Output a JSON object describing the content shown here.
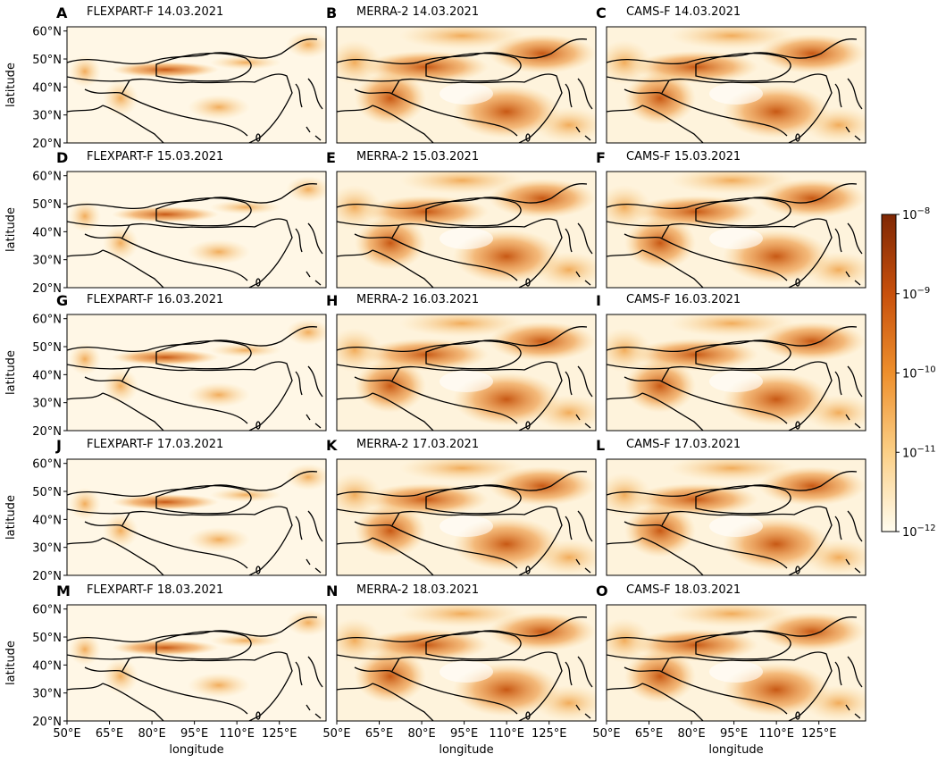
{
  "panels": [
    {
      "letter": "A",
      "title": "FLEXPART-F 14.03.2021"
    },
    {
      "letter": "B",
      "title": "MERRA-2 14.03.2021"
    },
    {
      "letter": "C",
      "title": "CAMS-F 14.03.2021"
    },
    {
      "letter": "D",
      "title": "FLEXPART-F 15.03.2021"
    },
    {
      "letter": "E",
      "title": "MERRA-2 15.03.2021"
    },
    {
      "letter": "F",
      "title": "CAMS-F 15.03.2021"
    },
    {
      "letter": "G",
      "title": "FLEXPART-F 16.03.2021"
    },
    {
      "letter": "H",
      "title": "MERRA-2 16.03.2021"
    },
    {
      "letter": "I",
      "title": "CAMS-F 16.03.2021"
    },
    {
      "letter": "J",
      "title": "FLEXPART-F 17.03.2021"
    },
    {
      "letter": "K",
      "title": "MERRA-2 17.03.2021"
    },
    {
      "letter": "L",
      "title": "CAMS-F 17.03.2021"
    },
    {
      "letter": "M",
      "title": "FLEXPART-F 18.03.2021"
    },
    {
      "letter": "N",
      "title": "MERRA-2 18.03.2021"
    },
    {
      "letter": "O",
      "title": "CAMS-F 18.03.2021"
    }
  ],
  "axis_labels": {
    "y": "latitude",
    "x": "longitude"
  },
  "lat_ticks": [
    "60°N",
    "50°N",
    "40°N",
    "30°N",
    "20°N"
  ],
  "lon_ticks": [
    "50°E",
    "65°E",
    "80°E",
    "95°E",
    "110°E",
    "125°E"
  ],
  "colorbar": {
    "ticks": [
      {
        "base": "10",
        "exponent": "−8"
      },
      {
        "base": "10",
        "exponent": "−9"
      },
      {
        "base": "10",
        "exponent": "−10"
      },
      {
        "base": "10",
        "exponent": "−11"
      },
      {
        "base": "10",
        "exponent": "−12"
      }
    ]
  }
}
